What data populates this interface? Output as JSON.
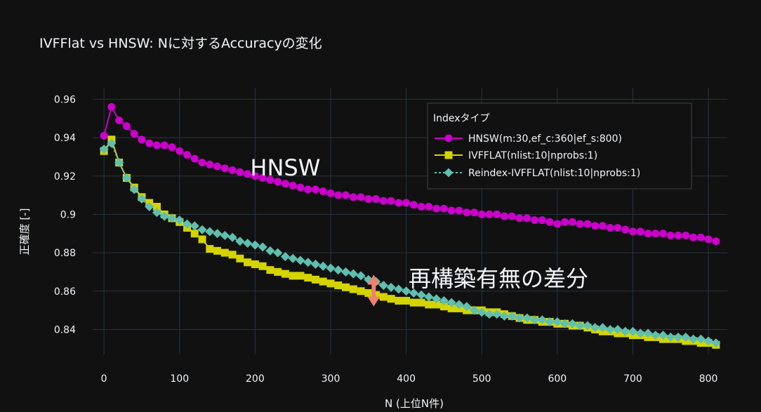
{
  "chart_data": {
    "type": "line",
    "title": "IVFFlat vs HNSW: Nに対するAccuracyの変化",
    "xlabel": "N (上位N件)",
    "ylabel": "正確度 [-]",
    "xlim": [
      -15,
      825
    ],
    "ylim": [
      0.827,
      0.966
    ],
    "xticks": [
      0,
      100,
      200,
      300,
      400,
      500,
      600,
      700,
      800
    ],
    "yticks": [
      0.84,
      0.86,
      0.88,
      0.9,
      0.92,
      0.94,
      0.96
    ],
    "ytick_labels": [
      "0.84",
      "0.86",
      "0.88",
      "0.9",
      "0.92",
      "0.94",
      "0.96"
    ],
    "grid": true,
    "legend": {
      "title": "Indexタイプ",
      "position": "top-right"
    },
    "x": [
      0,
      10,
      20,
      30,
      40,
      50,
      60,
      70,
      80,
      90,
      100,
      110,
      120,
      130,
      140,
      150,
      160,
      170,
      180,
      190,
      200,
      210,
      220,
      230,
      240,
      250,
      260,
      270,
      280,
      290,
      300,
      310,
      320,
      330,
      340,
      350,
      360,
      370,
      380,
      390,
      400,
      410,
      420,
      430,
      440,
      450,
      460,
      470,
      480,
      490,
      500,
      510,
      520,
      530,
      540,
      550,
      560,
      570,
      580,
      590,
      600,
      610,
      620,
      630,
      640,
      650,
      660,
      670,
      680,
      690,
      700,
      710,
      720,
      730,
      740,
      750,
      760,
      770,
      780,
      790,
      800,
      810
    ],
    "series": [
      {
        "name": "HNSW(m:30,ef_c:360|ef_s:800)",
        "color": "#cc00cc",
        "marker": "circle",
        "dash": "solid",
        "values": [
          0.941,
          0.956,
          0.949,
          0.946,
          0.942,
          0.939,
          0.937,
          0.936,
          0.936,
          0.935,
          0.933,
          0.931,
          0.929,
          0.927,
          0.926,
          0.925,
          0.924,
          0.923,
          0.922,
          0.921,
          0.92,
          0.919,
          0.918,
          0.917,
          0.916,
          0.915,
          0.914,
          0.913,
          0.913,
          0.912,
          0.911,
          0.91,
          0.91,
          0.909,
          0.909,
          0.908,
          0.908,
          0.907,
          0.907,
          0.906,
          0.906,
          0.905,
          0.904,
          0.904,
          0.903,
          0.903,
          0.902,
          0.902,
          0.901,
          0.901,
          0.9,
          0.9,
          0.9,
          0.899,
          0.899,
          0.898,
          0.898,
          0.897,
          0.897,
          0.896,
          0.895,
          0.896,
          0.896,
          0.895,
          0.895,
          0.894,
          0.894,
          0.893,
          0.893,
          0.892,
          0.891,
          0.891,
          0.89,
          0.89,
          0.89,
          0.889,
          0.889,
          0.889,
          0.888,
          0.888,
          0.887,
          0.886
        ]
      },
      {
        "name": "IVFFLAT(nlist:10|nprobs:1)",
        "color": "#d4d400",
        "marker": "square",
        "dash": "solid",
        "values": [
          0.933,
          0.939,
          0.927,
          0.919,
          0.914,
          0.909,
          0.906,
          0.904,
          0.9,
          0.898,
          0.896,
          0.893,
          0.89,
          0.887,
          0.882,
          0.881,
          0.88,
          0.879,
          0.877,
          0.875,
          0.874,
          0.873,
          0.871,
          0.87,
          0.869,
          0.868,
          0.868,
          0.867,
          0.866,
          0.865,
          0.864,
          0.863,
          0.862,
          0.861,
          0.86,
          0.859,
          0.858,
          0.857,
          0.856,
          0.855,
          0.855,
          0.854,
          0.854,
          0.853,
          0.853,
          0.852,
          0.851,
          0.851,
          0.85,
          0.85,
          0.85,
          0.849,
          0.849,
          0.848,
          0.847,
          0.846,
          0.845,
          0.845,
          0.844,
          0.844,
          0.843,
          0.843,
          0.842,
          0.842,
          0.841,
          0.84,
          0.839,
          0.839,
          0.838,
          0.838,
          0.837,
          0.837,
          0.836,
          0.836,
          0.835,
          0.835,
          0.835,
          0.834,
          0.834,
          0.833,
          0.833,
          0.832
        ]
      },
      {
        "name": "Reindex-IVFFLAT(nlist:10|nprobs:1)",
        "color": "#5fbfb0",
        "marker": "diamond",
        "dash": "dot",
        "values": [
          0.934,
          0.937,
          0.927,
          0.919,
          0.913,
          0.908,
          0.904,
          0.901,
          0.899,
          0.898,
          0.897,
          0.895,
          0.894,
          0.892,
          0.891,
          0.89,
          0.889,
          0.888,
          0.886,
          0.885,
          0.884,
          0.883,
          0.881,
          0.88,
          0.878,
          0.877,
          0.876,
          0.875,
          0.874,
          0.873,
          0.872,
          0.871,
          0.87,
          0.869,
          0.868,
          0.866,
          0.865,
          0.863,
          0.862,
          0.861,
          0.86,
          0.859,
          0.858,
          0.857,
          0.856,
          0.855,
          0.854,
          0.853,
          0.852,
          0.85,
          0.849,
          0.848,
          0.848,
          0.847,
          0.847,
          0.846,
          0.846,
          0.845,
          0.845,
          0.844,
          0.844,
          0.843,
          0.843,
          0.842,
          0.842,
          0.841,
          0.841,
          0.84,
          0.84,
          0.839,
          0.839,
          0.838,
          0.838,
          0.837,
          0.837,
          0.836,
          0.836,
          0.836,
          0.835,
          0.835,
          0.834,
          0.833
        ]
      }
    ],
    "annotations": [
      {
        "text": "HNSW",
        "x": 200,
        "y": 0.921
      },
      {
        "text": "再構築有無の差分",
        "x": 470,
        "y": 0.8665
      }
    ],
    "arrow": {
      "x": 357,
      "y_from": 0.852,
      "y_to": 0.8685,
      "color": "#f08070"
    }
  }
}
